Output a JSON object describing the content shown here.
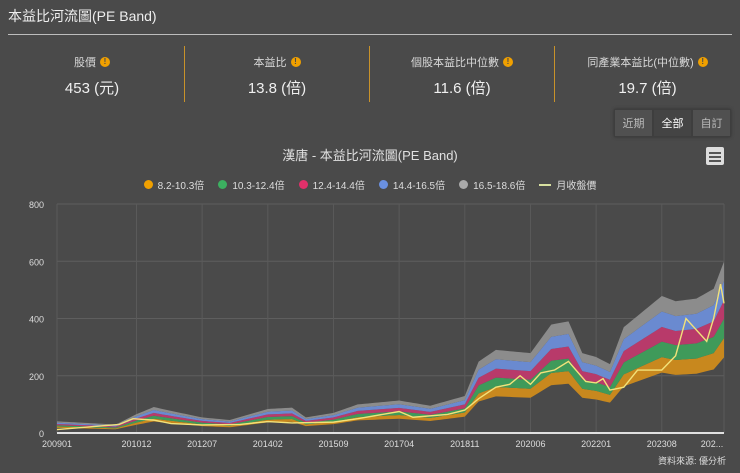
{
  "title": "本益比河流圖(PE Band)",
  "stats": [
    {
      "label": "股價",
      "value": "453 (元)"
    },
    {
      "label": "本益比",
      "value": "13.8 (倍)"
    },
    {
      "label": "個股本益比中位數",
      "value": "11.6 (倍)"
    },
    {
      "label": "同產業本益比(中位數)",
      "value": "19.7 (倍)"
    }
  ],
  "range_buttons": [
    {
      "label": "近期",
      "active": false
    },
    {
      "label": "全部",
      "active": true
    },
    {
      "label": "自訂",
      "active": false
    }
  ],
  "colors": {
    "background": "#4a4a4a",
    "accent": "#f0a000"
  },
  "chart_data": {
    "type": "area",
    "title": "漢唐 - 本益比河流圖(PE Band)",
    "ylim": [
      0,
      800
    ],
    "yticks": [
      "0",
      "200",
      "400",
      "600",
      "800"
    ],
    "xticks": [
      "200901",
      "201012",
      "201207",
      "201402",
      "201509",
      "201704",
      "201811",
      "202006",
      "202201",
      "202308",
      "202..."
    ],
    "source": "資料來源: 優分析",
    "band_multiples": [
      8.2,
      10.3,
      12.4,
      14.4,
      16.5,
      18.6
    ],
    "series": [
      {
        "name": "8.2-10.3倍",
        "color": "#c8881e"
      },
      {
        "name": "10.3-12.4倍",
        "color": "#3f9a5a"
      },
      {
        "name": "12.4-14.4倍",
        "color": "#b83a6a"
      },
      {
        "name": "14.4-16.5倍",
        "color": "#6a8ad0"
      },
      {
        "name": "16.5-18.6倍",
        "color": "#8c8c8c"
      },
      {
        "name": "月收盤價",
        "color": "#f2e27a"
      }
    ],
    "band_base_8_2x": [
      [
        "200901",
        18
      ],
      [
        "201006",
        13
      ],
      [
        "201012",
        29
      ],
      [
        "201105",
        40
      ],
      [
        "201110",
        34
      ],
      [
        "201207",
        24
      ],
      [
        "201303",
        20
      ],
      [
        "201402",
        37
      ],
      [
        "201409",
        39
      ],
      [
        "201501",
        24
      ],
      [
        "201509",
        31
      ],
      [
        "201604",
        44
      ],
      [
        "201704",
        50
      ],
      [
        "201801",
        42
      ],
      [
        "201811",
        57
      ],
      [
        "201903",
        110
      ],
      [
        "201908",
        128
      ],
      [
        "202006",
        123
      ],
      [
        "202012",
        167
      ],
      [
        "202105",
        172
      ],
      [
        "202109",
        123
      ],
      [
        "202201",
        117
      ],
      [
        "202205",
        106
      ],
      [
        "202209",
        163
      ],
      [
        "202308",
        211
      ],
      [
        "202312",
        203
      ],
      [
        "202406",
        207
      ],
      [
        "202411",
        222
      ],
      [
        "202502",
        264
      ]
    ],
    "price": [
      [
        "200901",
        12
      ],
      [
        "201007",
        30
      ],
      [
        "201011",
        50
      ],
      [
        "201105",
        45
      ],
      [
        "201110",
        33
      ],
      [
        "201207",
        28
      ],
      [
        "201306",
        30
      ],
      [
        "201402",
        40
      ],
      [
        "201409",
        35
      ],
      [
        "201509",
        38
      ],
      [
        "201604",
        50
      ],
      [
        "201704",
        75
      ],
      [
        "201708",
        55
      ],
      [
        "201806",
        65
      ],
      [
        "201811",
        80
      ],
      [
        "201903",
        120
      ],
      [
        "201908",
        160
      ],
      [
        "201912",
        170
      ],
      [
        "202003",
        200
      ],
      [
        "202006",
        170
      ],
      [
        "202009",
        210
      ],
      [
        "202101",
        220
      ],
      [
        "202105",
        250
      ],
      [
        "202110",
        180
      ],
      [
        "202201",
        175
      ],
      [
        "202203",
        190
      ],
      [
        "202205",
        150
      ],
      [
        "202209",
        160
      ],
      [
        "202301",
        220
      ],
      [
        "202308",
        220
      ],
      [
        "202312",
        270
      ],
      [
        "202403",
        400
      ],
      [
        "202406",
        360
      ],
      [
        "202409",
        320
      ],
      [
        "202411",
        400
      ],
      [
        "202501",
        520
      ],
      [
        "202502",
        453
      ]
    ]
  }
}
